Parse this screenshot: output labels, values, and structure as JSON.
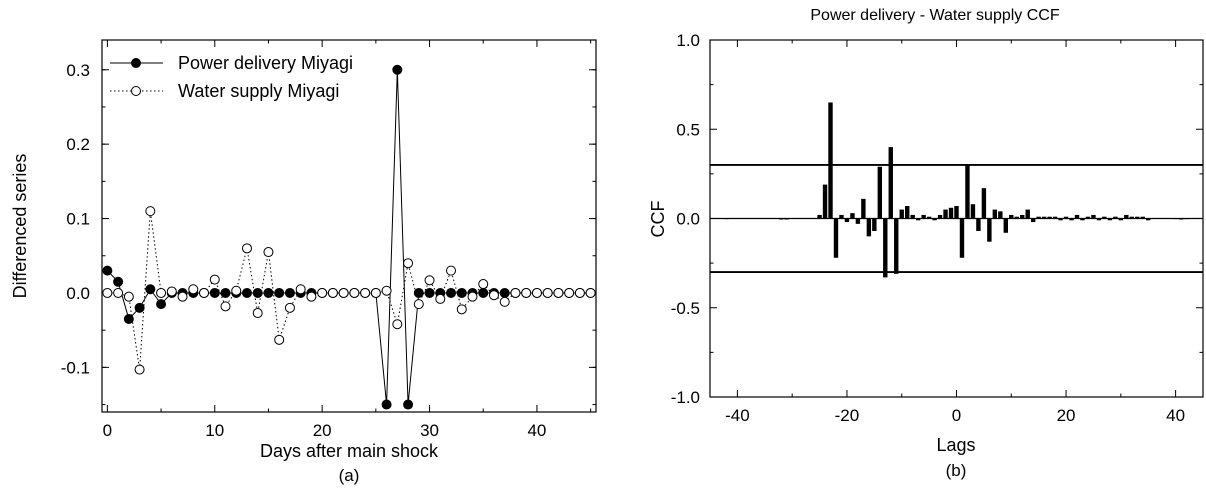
{
  "chart_data": [
    {
      "type": "line",
      "caption": "(a)",
      "xlabel": "Days after main shock",
      "ylabel": "Differenced series",
      "xlim": [
        -0.5,
        45.5
      ],
      "ylim": [
        -0.16,
        0.34
      ],
      "xticks": [
        0,
        10,
        20,
        30,
        40
      ],
      "yticks": [
        -0.1,
        0.0,
        0.1,
        0.2,
        0.3
      ],
      "ytick_labels": [
        "-0.1",
        "0.0",
        "0.1",
        "0.2",
        "0.3"
      ],
      "grid": false,
      "legend_position": "top-left",
      "x": [
        0,
        1,
        2,
        3,
        4,
        5,
        6,
        7,
        8,
        9,
        10,
        11,
        12,
        13,
        14,
        15,
        16,
        17,
        18,
        19,
        20,
        21,
        22,
        23,
        24,
        25,
        26,
        27,
        28,
        29,
        30,
        31,
        32,
        33,
        34,
        35,
        36,
        37,
        38,
        39,
        40,
        41,
        42,
        43,
        44,
        45
      ],
      "series": [
        {
          "name": "Power delivery Miyagi",
          "line_style": "solid",
          "marker": "filled-circle",
          "values": [
            0.03,
            0.015,
            -0.035,
            -0.02,
            0.005,
            -0.015,
            0.0,
            0.0,
            0.0,
            0.0,
            0.0,
            0.0,
            0.0,
            0.0,
            0.0,
            0.0,
            0.0,
            0.0,
            0.0,
            0.0,
            0.0,
            0.0,
            0.0,
            0.0,
            0.0,
            0.0,
            -0.15,
            0.3,
            -0.15,
            0.0,
            0.0,
            0.0,
            0.0,
            0.0,
            0.0,
            0.0,
            0.0,
            0.0,
            0.0,
            0.0,
            0.0,
            0.0,
            0.0,
            0.0,
            0.0,
            0.0
          ]
        },
        {
          "name": "Water supply Miyagi",
          "line_style": "dotted",
          "marker": "open-circle",
          "values": [
            0.0,
            0.0,
            -0.005,
            -0.103,
            0.11,
            0.0,
            0.002,
            -0.005,
            0.005,
            0.0,
            0.018,
            -0.018,
            0.003,
            0.06,
            -0.027,
            0.055,
            -0.063,
            -0.02,
            0.005,
            -0.005,
            0.0,
            0.0,
            0.0,
            0.0,
            0.0,
            0.0,
            0.003,
            -0.042,
            0.04,
            -0.015,
            0.017,
            -0.008,
            0.03,
            -0.022,
            -0.005,
            0.012,
            -0.003,
            -0.012,
            0.0,
            0.0,
            0.0,
            0.0,
            0.0,
            0.0,
            0.0,
            0.0
          ]
        }
      ]
    },
    {
      "type": "bar",
      "title": "Power delivery - Water supply CCF",
      "caption": "(b)",
      "xlabel": "Lags",
      "ylabel": "CCF",
      "xlim": [
        -45,
        45
      ],
      "ylim": [
        -1.0,
        1.0
      ],
      "xticks": [
        -40,
        -20,
        0,
        20,
        40
      ],
      "yticks": [
        -1.0,
        -0.5,
        0.0,
        0.5,
        1.0
      ],
      "ytick_labels": [
        "-1.0",
        "-0.5",
        "0.0",
        "0.5",
        "1.0"
      ],
      "confidence_limits": [
        0.3,
        -0.3
      ],
      "grid": false,
      "lags": [
        -42,
        -32,
        -31,
        -25,
        -24,
        -23,
        -22,
        -21,
        -20,
        -19,
        -18,
        -17,
        -16,
        -15,
        -14,
        -13,
        -12,
        -11,
        -10,
        -9,
        -8,
        -7,
        -6,
        -5,
        -4,
        -3,
        -2,
        -1,
        0,
        1,
        2,
        3,
        4,
        5,
        6,
        7,
        8,
        9,
        10,
        11,
        12,
        13,
        14,
        15,
        16,
        17,
        18,
        19,
        20,
        21,
        22,
        23,
        24,
        25,
        26,
        27,
        28,
        29,
        30,
        31,
        32,
        33,
        34,
        35,
        40,
        41,
        42
      ],
      "values": [
        0.002,
        -0.002,
        -0.002,
        0.02,
        0.19,
        0.65,
        -0.22,
        0.02,
        -0.02,
        0.03,
        -0.03,
        0.11,
        -0.1,
        -0.07,
        0.29,
        -0.33,
        0.4,
        -0.31,
        0.05,
        0.07,
        0.02,
        -0.01,
        0.02,
        0.01,
        -0.01,
        0.02,
        0.05,
        0.06,
        0.07,
        -0.22,
        0.3,
        0.08,
        -0.07,
        0.17,
        -0.13,
        0.05,
        0.04,
        -0.08,
        0.02,
        0.01,
        0.02,
        0.05,
        -0.02,
        0.01,
        0.01,
        0.01,
        0.01,
        -0.01,
        0.01,
        -0.01,
        0.02,
        -0.01,
        0.01,
        0.02,
        -0.01,
        0.01,
        -0.01,
        0.01,
        -0.01,
        0.02,
        0.01,
        0.01,
        0.01,
        -0.01,
        0.002,
        -0.002,
        0.002
      ]
    }
  ]
}
